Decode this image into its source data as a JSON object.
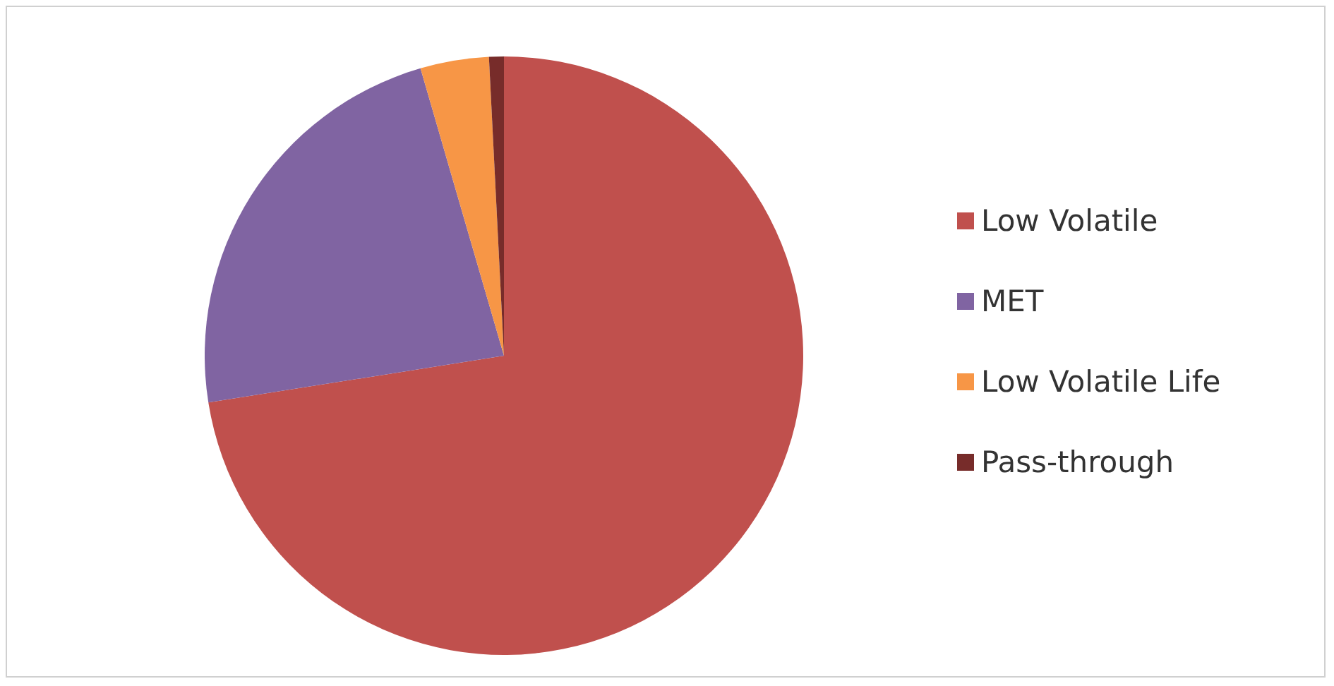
{
  "chart_data": {
    "type": "pie",
    "categories": [
      "Low Volatile",
      "MET",
      "Low Volatile Life",
      "Pass-through"
    ],
    "values": [
      72.5,
      23,
      3.7,
      0.8
    ],
    "colors": [
      "#c0504d",
      "#8064a2",
      "#f79646",
      "#772c2a"
    ],
    "legend": "right"
  }
}
